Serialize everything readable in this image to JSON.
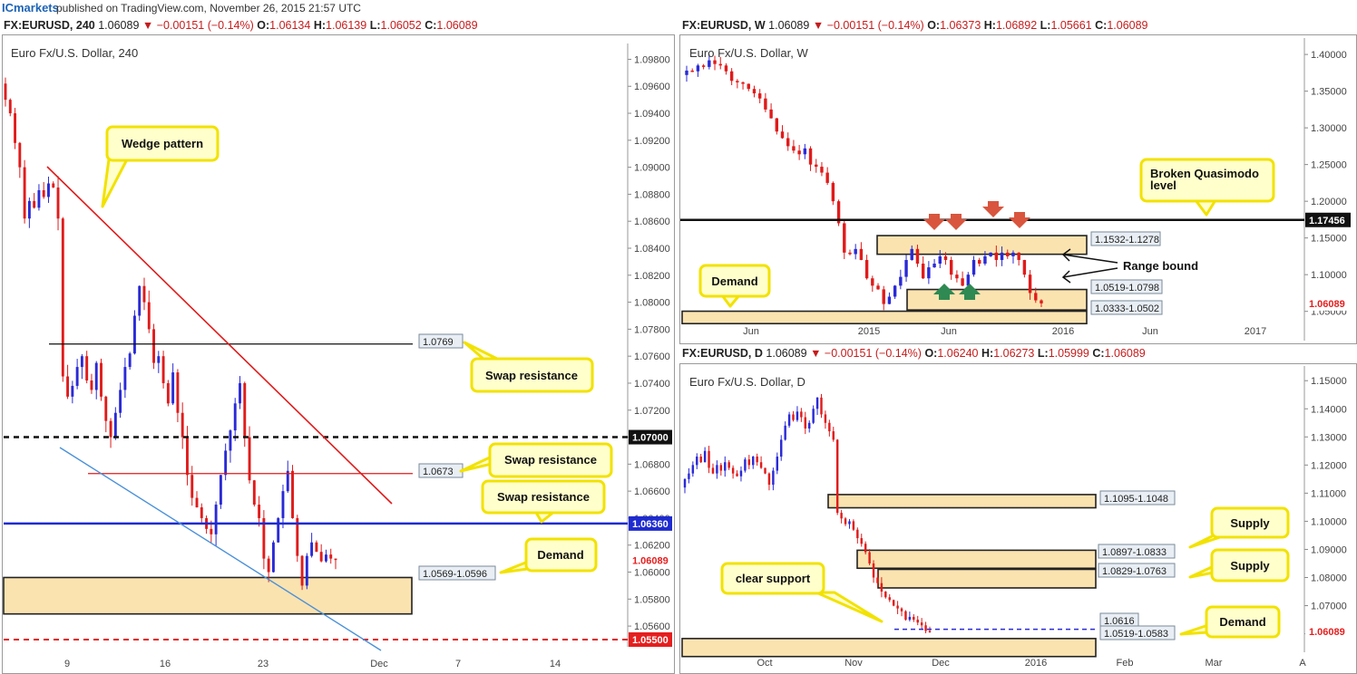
{
  "header": {
    "brand": "ICmarkets",
    "published": "published on TradingView.com, November 26, 2015 21:57 UTC"
  },
  "colors": {
    "bull": "#2a2ad6",
    "bear": "#e01b1b",
    "zone_fill": "#fbe3b0",
    "callout_fill": "#ffffcc",
    "callout_border": "#f2e200",
    "price_tag": "#e61e1e"
  },
  "panels": {
    "h4": {
      "info": {
        "symbol": "FX:EURUSD, 240",
        "last": "1.06089",
        "arrow": "▼",
        "change": "−0.00151 (−0.14%)",
        "o": "1.06134",
        "h": "1.06139",
        "l": "1.06052",
        "c": "1.06089"
      },
      "title": "Euro Fx/U.S. Dollar, 240",
      "yticks": [
        "1.09800",
        "1.09600",
        "1.09400",
        "1.09200",
        "1.09000",
        "1.08800",
        "1.08600",
        "1.08400",
        "1.08200",
        "1.08000",
        "1.07800",
        "1.07600",
        "1.07400",
        "1.07200",
        "1.07000",
        "1.06800",
        "1.06600",
        "1.06400",
        "1.06200",
        "1.06000",
        "1.05800",
        "1.05600"
      ],
      "xticks": [
        "9",
        "16",
        "23",
        "Dec",
        "7",
        "14"
      ],
      "tags": {
        "t1": "1.07000",
        "t2": "1.06360",
        "t3": "1.06089",
        "t4": "1.05500"
      },
      "boxes": {
        "b1": "1.0769",
        "b2": "1.0673",
        "b3": "1.0569-1.0596"
      },
      "callouts": {
        "wedge": "Wedge pattern",
        "swap1": "Swap resistance",
        "swap2": "Swap resistance",
        "swap3": "Swap resistance",
        "demand": "Demand"
      }
    },
    "weekly": {
      "info": {
        "symbol": "FX:EURUSD, W",
        "last": "1.06089",
        "arrow": "▼",
        "change": "−0.00151 (−0.14%)",
        "o": "1.06373",
        "h": "1.06892",
        "l": "1.05661",
        "c": "1.06089"
      },
      "title": "Euro Fx/U.S. Dollar, W",
      "yticks": [
        "1.40000",
        "1.35000",
        "1.30000",
        "1.25000",
        "1.20000",
        "1.15000",
        "1.10000",
        "1.05000",
        "1.00000"
      ],
      "xticks": [
        "Jun",
        "2015",
        "Jun",
        "2016",
        "Jun",
        "2017"
      ],
      "tags": {
        "t1": "1.17456",
        "t2": "1.06089"
      },
      "boxes": {
        "b1": "1.1532-1.1278",
        "b2": "1.0519-1.0798",
        "b3": "1.0333-1.0502"
      },
      "callouts": {
        "bqm1": "Broken Quasimodo",
        "bqm2": "level",
        "demand": "Demand",
        "range": "Range bound"
      }
    },
    "daily": {
      "info": {
        "symbol": "FX:EURUSD, D",
        "last": "1.06089",
        "arrow": "▼",
        "change": "−0.00151 (−0.14%)",
        "o": "1.06240",
        "h": "1.06273",
        "l": "1.05999",
        "c": "1.06089"
      },
      "title": "Euro Fx/U.S. Dollar, D",
      "yticks": [
        "1.15000",
        "1.14000",
        "1.13000",
        "1.12000",
        "1.11000",
        "1.10000",
        "1.09000",
        "1.08000",
        "1.07000",
        "1.06000"
      ],
      "xticks": [
        "Oct",
        "Nov",
        "Dec",
        "2016",
        "Feb",
        "Mar",
        "A"
      ],
      "tags": {
        "t1": "1.06089"
      },
      "boxes": {
        "b1": "1.1095-1.1048",
        "b2": "1.0897-1.0833",
        "b3": "1.0829-1.0763",
        "b4": "1.0616",
        "b5": "1.0519-1.0583"
      },
      "callouts": {
        "supply1": "Supply",
        "supply2": "Supply",
        "clear": "clear support",
        "demand": "Demand"
      }
    }
  },
  "chart_data": [
    {
      "type": "candlestick",
      "title": "Euro Fx/U.S. Dollar, 240",
      "ylim": [
        1.055,
        1.0985
      ],
      "levels": [
        1.0769,
        1.07,
        1.0673,
        1.0636,
        1.055
      ],
      "zones": [
        [
          1.0569,
          1.0596
        ]
      ],
      "wedge_upper": [
        [
          1.0895,
          1.065
        ]
      ],
      "wedge_lower": [
        [
          1.0885,
          1.055
        ]
      ],
      "closes": [
        1.095,
        1.094,
        1.0918,
        1.09,
        1.0862,
        1.0875,
        1.087,
        1.0883,
        1.0878,
        1.0888,
        1.0885,
        1.0862,
        1.0745,
        1.073,
        1.0738,
        1.0752,
        1.076,
        1.0742,
        1.0735,
        1.0755,
        1.073,
        1.0712,
        1.07,
        1.0718,
        1.0735,
        1.0752,
        1.0762,
        1.079,
        1.0812,
        1.08,
        1.078,
        1.0755,
        1.076,
        1.074,
        1.0725,
        1.0748,
        1.0718,
        1.07,
        1.0672,
        1.0655,
        1.0648,
        1.064,
        1.0632,
        1.0628,
        1.065,
        1.0672,
        1.069,
        1.0705,
        1.0725,
        1.074,
        1.07,
        1.0668,
        1.065,
        1.064,
        1.061,
        1.06,
        1.0622,
        1.064,
        1.066,
        1.0675,
        1.064,
        1.0612,
        1.059,
        1.0612,
        1.0622,
        1.0615,
        1.0608,
        1.0613,
        1.061,
        1.0609
      ]
    },
    {
      "type": "candlestick",
      "title": "Euro Fx/U.S. Dollar, W",
      "ylim": [
        1.02,
        1.41
      ],
      "levels": [
        1.17456
      ],
      "zones": [
        [
          1.1278,
          1.1532
        ],
        [
          1.0519,
          1.0798
        ],
        [
          1.0333,
          1.0502
        ]
      ],
      "closes": [
        1.378,
        1.377,
        1.385,
        1.383,
        1.392,
        1.387,
        1.385,
        1.377,
        1.364,
        1.362,
        1.36,
        1.353,
        1.347,
        1.34,
        1.325,
        1.313,
        1.295,
        1.286,
        1.275,
        1.269,
        1.264,
        1.272,
        1.25,
        1.247,
        1.239,
        1.225,
        1.2,
        1.17,
        1.13,
        1.128,
        1.135,
        1.12,
        1.095,
        1.085,
        1.08,
        1.06,
        1.07,
        1.085,
        1.097,
        1.12,
        1.135,
        1.115,
        1.095,
        1.11,
        1.115,
        1.125,
        1.12,
        1.1,
        1.095,
        1.085,
        1.1,
        1.12,
        1.115,
        1.125,
        1.13,
        1.12,
        1.13,
        1.125,
        1.13,
        1.12,
        1.1,
        1.075,
        1.065,
        1.0609
      ]
    },
    {
      "type": "candlestick",
      "title": "Euro Fx/U.S. Dollar, D",
      "ylim": [
        1.056,
        1.152
      ],
      "levels": [
        1.0616
      ],
      "zones": [
        [
          1.1048,
          1.1095
        ],
        [
          1.0833,
          1.0897
        ],
        [
          1.0763,
          1.0829
        ],
        [
          1.0519,
          1.0583
        ]
      ],
      "closes": [
        1.115,
        1.117,
        1.12,
        1.123,
        1.121,
        1.125,
        1.119,
        1.117,
        1.12,
        1.118,
        1.121,
        1.119,
        1.117,
        1.116,
        1.118,
        1.122,
        1.12,
        1.123,
        1.121,
        1.119,
        1.117,
        1.113,
        1.118,
        1.123,
        1.129,
        1.134,
        1.138,
        1.136,
        1.139,
        1.137,
        1.133,
        1.135,
        1.14,
        1.144,
        1.138,
        1.135,
        1.132,
        1.129,
        1.103,
        1.101,
        1.099,
        1.1,
        1.097,
        1.094,
        1.092,
        1.089,
        1.085,
        1.08,
        1.078,
        1.075,
        1.073,
        1.072,
        1.07,
        1.069,
        1.068,
        1.065,
        1.066,
        1.065,
        1.064,
        1.063,
        1.061,
        1.0609
      ]
    }
  ]
}
